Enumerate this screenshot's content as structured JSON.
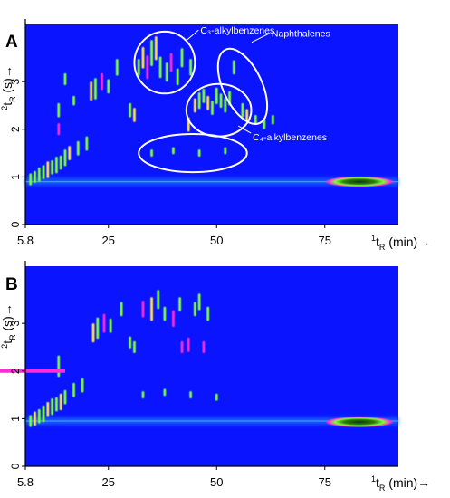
{
  "figure": {
    "colors": {
      "background": "#0a14ff",
      "band": "#1e7aff",
      "peak_green": "#7cff3a",
      "peak_magenta": "#ff2ad8",
      "peak_yellow": "#ffe14a",
      "peak_dark": "#0a3a05",
      "annotation": "#ffffff",
      "axis": "#000000"
    }
  },
  "chart_data": [
    {
      "panel_label": "A",
      "type": "heatmap",
      "title": "",
      "xlabel": "¹t_R (min)→",
      "ylabel": "²t_R (s)→",
      "xlim": [
        5.8,
        92
      ],
      "ylim": [
        0,
        4.2
      ],
      "xticks": [
        "5.8",
        "25",
        "50",
        "75"
      ],
      "xtick_values": [
        5.8,
        25,
        50,
        75
      ],
      "yticks": [
        "0",
        "1",
        "2",
        "3"
      ],
      "ytick_values": [
        0,
        1,
        2,
        3
      ],
      "baseline_band": {
        "y": 0.9,
        "x_start": 5.8,
        "x_end": 92
      },
      "solvent_tail": {
        "x_start": 75,
        "x_end": 91,
        "y": 0.9
      },
      "annotations": [
        {
          "id": "c3",
          "label": "C₃-alkylbenzenes",
          "cx": 38,
          "cy": 3.4,
          "rx": 7,
          "ry": 0.65
        },
        {
          "id": "naph",
          "label": "Naphthalenes",
          "cx": 56,
          "cy": 2.9,
          "rx": 4.5,
          "ry": 0.85
        },
        {
          "id": "c4",
          "label": "C₄-alkylbenzenes",
          "cx": 50.5,
          "cy": 2.4,
          "rx": 7.5,
          "ry": 0.55
        },
        {
          "id": "other",
          "label": "",
          "cx": 44.5,
          "cy": 1.5,
          "rx": 12.5,
          "ry": 0.4
        }
      ],
      "peaks": [
        {
          "x": 7,
          "y": 0.95,
          "h": 0.25,
          "c": "g"
        },
        {
          "x": 8,
          "y": 1.0,
          "h": 0.25,
          "c": "g"
        },
        {
          "x": 9,
          "y": 1.05,
          "h": 0.3,
          "c": "g"
        },
        {
          "x": 10,
          "y": 1.1,
          "h": 0.3,
          "c": "g"
        },
        {
          "x": 11,
          "y": 1.15,
          "h": 0.35,
          "c": "y"
        },
        {
          "x": 12,
          "y": 1.2,
          "h": 0.3,
          "c": "g"
        },
        {
          "x": 13,
          "y": 1.25,
          "h": 0.35,
          "c": "g"
        },
        {
          "x": 14,
          "y": 1.3,
          "h": 0.3,
          "c": "g"
        },
        {
          "x": 15,
          "y": 1.4,
          "h": 0.35,
          "c": "g"
        },
        {
          "x": 16,
          "y": 1.5,
          "h": 0.3,
          "c": "y"
        },
        {
          "x": 18,
          "y": 1.6,
          "h": 0.3,
          "c": "g"
        },
        {
          "x": 20,
          "y": 1.7,
          "h": 0.3,
          "c": "g"
        },
        {
          "x": 13.5,
          "y": 2.0,
          "h": 0.25,
          "c": "m"
        },
        {
          "x": 13.5,
          "y": 2.4,
          "h": 0.3,
          "c": "g"
        },
        {
          "x": 15,
          "y": 3.05,
          "h": 0.25,
          "c": "g"
        },
        {
          "x": 17,
          "y": 2.6,
          "h": 0.2,
          "c": "g"
        },
        {
          "x": 21,
          "y": 2.8,
          "h": 0.4,
          "c": "y"
        },
        {
          "x": 22,
          "y": 2.85,
          "h": 0.45,
          "c": "g"
        },
        {
          "x": 23.5,
          "y": 3.0,
          "h": 0.35,
          "c": "m"
        },
        {
          "x": 25,
          "y": 2.9,
          "h": 0.3,
          "c": "g"
        },
        {
          "x": 27,
          "y": 3.3,
          "h": 0.35,
          "c": "g"
        },
        {
          "x": 30,
          "y": 2.4,
          "h": 0.3,
          "c": "g"
        },
        {
          "x": 31,
          "y": 2.3,
          "h": 0.3,
          "c": "y"
        },
        {
          "x": 32,
          "y": 3.3,
          "h": 0.35,
          "c": "g"
        },
        {
          "x": 33,
          "y": 3.5,
          "h": 0.45,
          "c": "y"
        },
        {
          "x": 34,
          "y": 3.3,
          "h": 0.5,
          "c": "m"
        },
        {
          "x": 35,
          "y": 3.6,
          "h": 0.55,
          "c": "g"
        },
        {
          "x": 36,
          "y": 3.7,
          "h": 0.5,
          "c": "y"
        },
        {
          "x": 37,
          "y": 3.3,
          "h": 0.45,
          "c": "g"
        },
        {
          "x": 38.5,
          "y": 3.2,
          "h": 0.4,
          "c": "g"
        },
        {
          "x": 39.5,
          "y": 3.4,
          "h": 0.4,
          "c": "m"
        },
        {
          "x": 41,
          "y": 3.1,
          "h": 0.35,
          "c": "g"
        },
        {
          "x": 42,
          "y": 3.5,
          "h": 0.4,
          "c": "g"
        },
        {
          "x": 43.5,
          "y": 2.1,
          "h": 0.3,
          "c": "y"
        },
        {
          "x": 44,
          "y": 3.3,
          "h": 0.35,
          "c": "g"
        },
        {
          "x": 45,
          "y": 2.5,
          "h": 0.3,
          "c": "y"
        },
        {
          "x": 46,
          "y": 2.6,
          "h": 0.35,
          "c": "g"
        },
        {
          "x": 47,
          "y": 2.7,
          "h": 0.3,
          "c": "g"
        },
        {
          "x": 48,
          "y": 2.55,
          "h": 0.3,
          "c": "y"
        },
        {
          "x": 49,
          "y": 2.45,
          "h": 0.3,
          "c": "g"
        },
        {
          "x": 50,
          "y": 2.7,
          "h": 0.35,
          "c": "g"
        },
        {
          "x": 51,
          "y": 2.6,
          "h": 0.3,
          "c": "g"
        },
        {
          "x": 52,
          "y": 2.5,
          "h": 0.3,
          "c": "g"
        },
        {
          "x": 53,
          "y": 2.65,
          "h": 0.3,
          "c": "g"
        },
        {
          "x": 54,
          "y": 3.3,
          "h": 0.3,
          "c": "g"
        },
        {
          "x": 56,
          "y": 2.4,
          "h": 0.3,
          "c": "g"
        },
        {
          "x": 57,
          "y": 2.3,
          "h": 0.25,
          "c": "y"
        },
        {
          "x": 59,
          "y": 2.2,
          "h": 0.2,
          "c": "g"
        },
        {
          "x": 61,
          "y": 2.1,
          "h": 0.2,
          "c": "g"
        },
        {
          "x": 63,
          "y": 2.2,
          "h": 0.2,
          "c": "g"
        },
        {
          "x": 35,
          "y": 1.5,
          "h": 0.15,
          "c": "g"
        },
        {
          "x": 40,
          "y": 1.55,
          "h": 0.15,
          "c": "g"
        },
        {
          "x": 46,
          "y": 1.5,
          "h": 0.15,
          "c": "g"
        },
        {
          "x": 52,
          "y": 1.55,
          "h": 0.15,
          "c": "g"
        }
      ]
    },
    {
      "panel_label": "B",
      "type": "heatmap",
      "title": "",
      "xlabel": "¹t_R (min)→",
      "ylabel": "²t_R (s)→",
      "xlim": [
        5.8,
        92
      ],
      "ylim": [
        0,
        4.2
      ],
      "xticks": [
        "5.8",
        "25",
        "50",
        "75"
      ],
      "xtick_values": [
        5.8,
        25,
        50,
        75
      ],
      "yticks": [
        "0",
        "1",
        "2",
        "3"
      ],
      "ytick_values": [
        0,
        1,
        2,
        3
      ],
      "baseline_band": {
        "y": 0.95,
        "x_start": 5.8,
        "x_end": 92
      },
      "solvent_tail": {
        "x_start": 75,
        "x_end": 91,
        "y": 0.93
      },
      "streak": {
        "x_start": 0,
        "x_end": 15,
        "y": 2.0
      },
      "annotations": [],
      "peaks": [
        {
          "x": 7,
          "y": 0.95,
          "h": 0.25,
          "c": "g"
        },
        {
          "x": 8,
          "y": 1.0,
          "h": 0.3,
          "c": "y"
        },
        {
          "x": 9,
          "y": 1.05,
          "h": 0.3,
          "c": "g"
        },
        {
          "x": 10,
          "y": 1.1,
          "h": 0.35,
          "c": "g"
        },
        {
          "x": 11,
          "y": 1.2,
          "h": 0.3,
          "c": "y"
        },
        {
          "x": 12,
          "y": 1.25,
          "h": 0.35,
          "c": "g"
        },
        {
          "x": 13,
          "y": 1.3,
          "h": 0.3,
          "c": "g"
        },
        {
          "x": 14,
          "y": 1.35,
          "h": 0.35,
          "c": "y"
        },
        {
          "x": 15,
          "y": 1.45,
          "h": 0.3,
          "c": "g"
        },
        {
          "x": 17,
          "y": 1.6,
          "h": 0.3,
          "c": "g"
        },
        {
          "x": 19,
          "y": 1.7,
          "h": 0.3,
          "c": "g"
        },
        {
          "x": 13.5,
          "y": 2.1,
          "h": 0.45,
          "c": "g"
        },
        {
          "x": 21.5,
          "y": 2.8,
          "h": 0.4,
          "c": "y"
        },
        {
          "x": 22.5,
          "y": 2.9,
          "h": 0.45,
          "c": "g"
        },
        {
          "x": 24,
          "y": 3.0,
          "h": 0.4,
          "c": "m"
        },
        {
          "x": 25.5,
          "y": 2.95,
          "h": 0.3,
          "c": "g"
        },
        {
          "x": 28,
          "y": 3.3,
          "h": 0.3,
          "c": "g"
        },
        {
          "x": 30,
          "y": 2.6,
          "h": 0.25,
          "c": "g"
        },
        {
          "x": 31,
          "y": 2.5,
          "h": 0.25,
          "c": "g"
        },
        {
          "x": 33,
          "y": 3.3,
          "h": 0.35,
          "c": "m"
        },
        {
          "x": 35,
          "y": 3.3,
          "h": 0.5,
          "c": "y"
        },
        {
          "x": 36.5,
          "y": 3.5,
          "h": 0.4,
          "c": "g"
        },
        {
          "x": 38,
          "y": 3.2,
          "h": 0.3,
          "c": "g"
        },
        {
          "x": 40,
          "y": 3.1,
          "h": 0.35,
          "c": "m"
        },
        {
          "x": 41.5,
          "y": 3.4,
          "h": 0.3,
          "c": "g"
        },
        {
          "x": 42,
          "y": 2.5,
          "h": 0.25,
          "c": "m"
        },
        {
          "x": 43.5,
          "y": 2.55,
          "h": 0.3,
          "c": "m"
        },
        {
          "x": 45,
          "y": 3.3,
          "h": 0.3,
          "c": "g"
        },
        {
          "x": 46,
          "y": 3.45,
          "h": 0.35,
          "c": "g"
        },
        {
          "x": 47,
          "y": 2.5,
          "h": 0.25,
          "c": "m"
        },
        {
          "x": 48,
          "y": 3.2,
          "h": 0.3,
          "c": "g"
        },
        {
          "x": 33,
          "y": 1.5,
          "h": 0.15,
          "c": "g"
        },
        {
          "x": 38,
          "y": 1.55,
          "h": 0.15,
          "c": "g"
        },
        {
          "x": 44,
          "y": 1.5,
          "h": 0.15,
          "c": "g"
        },
        {
          "x": 50,
          "y": 1.45,
          "h": 0.15,
          "c": "g"
        }
      ]
    }
  ]
}
